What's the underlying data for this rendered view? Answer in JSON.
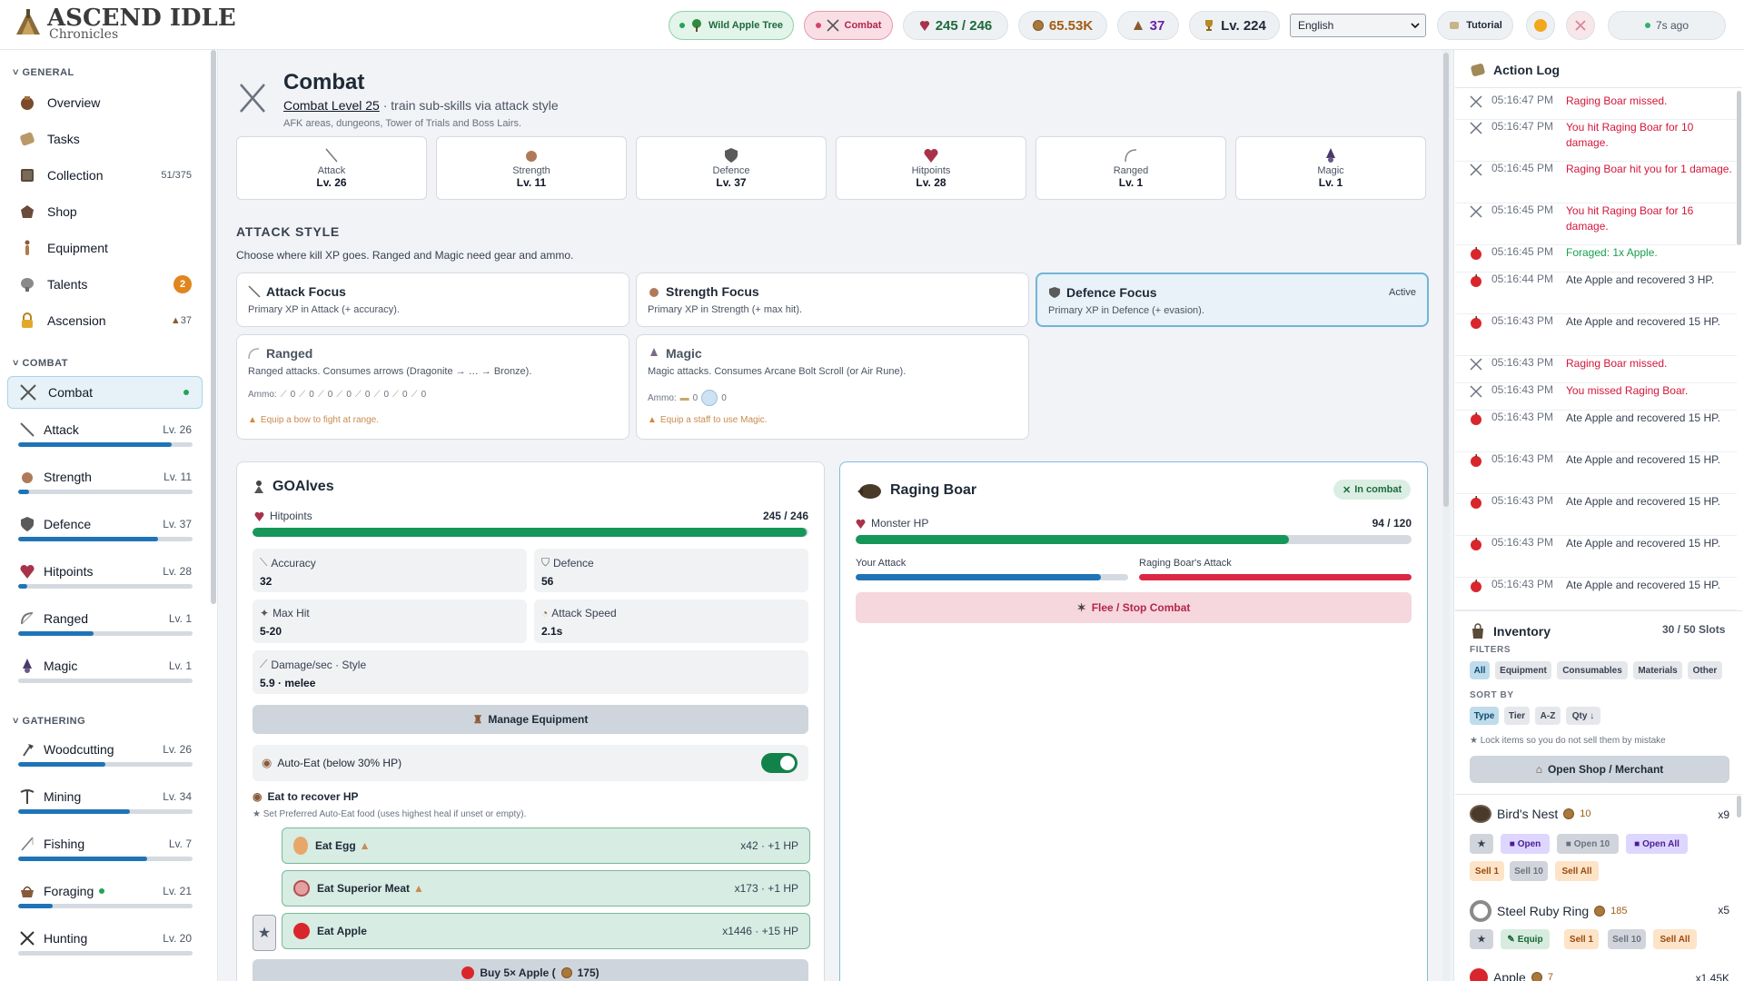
{
  "app": {
    "title": "ASCEND IDLE",
    "subtitle": "Chronicles"
  },
  "topbar": {
    "location": "Wild Apple Tree",
    "activity": "Combat",
    "hp": "245 / 246",
    "gold": "65.53K",
    "ascension": "37",
    "total_level": "Lv. 224",
    "language": "English",
    "tutorial": "Tutorial",
    "last_save": "7s ago"
  },
  "sidebar": {
    "general_label": "GENERAL",
    "general": [
      {
        "label": "Overview",
        "icon": "overview-icon",
        "meta": ""
      },
      {
        "label": "Tasks",
        "icon": "tasks-icon",
        "meta": ""
      },
      {
        "label": "Collection",
        "icon": "collection-icon",
        "meta": "51/375"
      },
      {
        "label": "Shop",
        "icon": "shop-icon",
        "meta": ""
      },
      {
        "label": "Equipment",
        "icon": "equipment-icon",
        "meta": ""
      },
      {
        "label": "Talents",
        "icon": "talents-icon",
        "meta": "2"
      },
      {
        "label": "Ascension",
        "icon": "ascension-icon",
        "meta": "37"
      }
    ],
    "combat_label": "COMBAT",
    "combat_item": "Combat",
    "combat_skills": [
      {
        "label": "Attack",
        "level": "Lv. 26",
        "progress": 0.88
      },
      {
        "label": "Strength",
        "level": "Lv. 11",
        "progress": 0.06
      },
      {
        "label": "Defence",
        "level": "Lv. 37",
        "progress": 0.8
      },
      {
        "label": "Hitpoints",
        "level": "Lv. 28",
        "progress": 0.05
      },
      {
        "label": "Ranged",
        "level": "Lv. 1",
        "progress": 0.43
      },
      {
        "label": "Magic",
        "level": "Lv. 1",
        "progress": 0.0
      }
    ],
    "gathering_label": "GATHERING",
    "gathering_skills": [
      {
        "label": "Woodcutting",
        "level": "Lv. 26",
        "progress": 0.5
      },
      {
        "label": "Mining",
        "level": "Lv. 34",
        "progress": 0.64
      },
      {
        "label": "Fishing",
        "level": "Lv. 7",
        "progress": 0.74
      },
      {
        "label": "Foraging",
        "level": "Lv. 21",
        "progress": 0.2
      },
      {
        "label": "Hunting",
        "level": "Lv. 20",
        "progress": 0.0
      }
    ]
  },
  "combat": {
    "title": "Combat",
    "level_text": "Combat Level 25",
    "tagline": "· train sub-skills via attack style",
    "desc": "AFK areas, dungeons, Tower of Trials and Boss Lairs.",
    "tiles": [
      {
        "name": "Attack",
        "level": "Lv. 26"
      },
      {
        "name": "Strength",
        "level": "Lv. 11"
      },
      {
        "name": "Defence",
        "level": "Lv. 37"
      },
      {
        "name": "Hitpoints",
        "level": "Lv. 28"
      },
      {
        "name": "Ranged",
        "level": "Lv. 1"
      },
      {
        "name": "Magic",
        "level": "Lv. 1"
      }
    ],
    "style_heading": "ATTACK STYLE",
    "style_desc": "Choose where kill XP goes. Ranged and Magic need gear and ammo.",
    "styles": [
      {
        "title": "Attack Focus",
        "desc": "Primary XP in Attack (+ accuracy)."
      },
      {
        "title": "Strength Focus",
        "desc": "Primary XP in Strength (+ max hit)."
      },
      {
        "title": "Defence Focus",
        "desc": "Primary XP in Defence (+ evasion).",
        "tag": "Active"
      }
    ],
    "ranged": {
      "title": "Ranged",
      "desc": "Ranged attacks. Consumes arrows (Dragonite → … → Bronze).",
      "ammo_label": "Ammo:",
      "ammo_counts": [
        "0",
        "0",
        "0",
        "0",
        "0",
        "0",
        "0",
        "0"
      ],
      "warn": "Equip a bow to fight at range."
    },
    "magic": {
      "title": "Magic",
      "desc": "Magic attacks. Consumes Arcane Bolt Scroll (or Air Rune).",
      "ammo_label": "Ammo:",
      "ammo_counts": [
        "0",
        "0"
      ],
      "warn": "Equip a staff to use Magic."
    }
  },
  "player": {
    "name": "GOAlves",
    "hp_label": "Hitpoints",
    "hp_text": "245 / 246",
    "hp_fraction": 0.996,
    "stats": [
      {
        "label": "Accuracy",
        "value": "32"
      },
      {
        "label": "Defence",
        "value": "56"
      },
      {
        "label": "Max Hit",
        "value": "5-20"
      },
      {
        "label": "Attack Speed",
        "value": "2.1s"
      },
      {
        "label": "Damage/sec · Style",
        "value": "5.9 · melee"
      }
    ],
    "manage_equipment": "Manage Equipment",
    "auto_eat": "Auto-Eat (below 30% HP)",
    "eat_heading": "Eat to recover HP",
    "eat_note": "★ Set Preferred Auto-Eat food (uses highest heal if unset or empty).",
    "foods": [
      {
        "label": "Eat Egg",
        "qty": "x42 · +1 HP"
      },
      {
        "label": "Eat Superior Meat",
        "qty": "x173 · +1 HP"
      },
      {
        "label": "Eat Apple",
        "qty": "x1446 · +15 HP"
      }
    ],
    "buy_label": "Buy 5× Apple (",
    "buy_price": "175)"
  },
  "monster": {
    "name": "Raging Boar",
    "status": "In combat",
    "hp_label": "Monster HP",
    "hp_text": "94 / 120",
    "hp_fraction": 0.78,
    "your_attack": "Your Attack",
    "their_attack": "Raging Boar's Attack",
    "your_attack_progress": 0.9,
    "their_attack_progress": 1.0,
    "flee": "Flee / Stop Combat"
  },
  "log": {
    "title": "Action Log",
    "entries": [
      {
        "time": "05:16:47 PM",
        "text": "Raging Boar missed.",
        "color": "red",
        "icon": "swords-icon"
      },
      {
        "time": "05:16:47 PM",
        "text": "You hit Raging Boar for 10 damage.",
        "color": "red",
        "icon": "swords-icon"
      },
      {
        "time": "05:16:45 PM",
        "text": "Raging Boar hit you for 1 damage.",
        "color": "red",
        "icon": "swords-icon"
      },
      {
        "time": "05:16:45 PM",
        "text": "You hit Raging Boar for 16 damage.",
        "color": "red",
        "icon": "swords-icon"
      },
      {
        "time": "05:16:45 PM",
        "text": "Foraged: 1x Apple.",
        "color": "green",
        "icon": "apple-icon"
      },
      {
        "time": "05:16:44 PM",
        "text": "Ate Apple and recovered 3 HP.",
        "color": "gray",
        "icon": "apple-icon"
      },
      {
        "time": "05:16:43 PM",
        "text": "Ate Apple and recovered 15 HP.",
        "color": "gray",
        "icon": "apple-icon"
      },
      {
        "time": "05:16:43 PM",
        "text": "Raging Boar missed.",
        "color": "red",
        "icon": "swords-icon"
      },
      {
        "time": "05:16:43 PM",
        "text": "You missed Raging Boar.",
        "color": "red",
        "icon": "swords-icon"
      },
      {
        "time": "05:16:43 PM",
        "text": "Ate Apple and recovered 15 HP.",
        "color": "gray",
        "icon": "apple-icon"
      },
      {
        "time": "05:16:43 PM",
        "text": "Ate Apple and recovered 15 HP.",
        "color": "gray",
        "icon": "apple-icon"
      },
      {
        "time": "05:16:43 PM",
        "text": "Ate Apple and recovered 15 HP.",
        "color": "gray",
        "icon": "apple-icon"
      },
      {
        "time": "05:16:43 PM",
        "text": "Ate Apple and recovered 15 HP.",
        "color": "gray",
        "icon": "apple-icon"
      },
      {
        "time": "05:16:43 PM",
        "text": "Ate Apple and recovered 15 HP.",
        "color": "gray",
        "icon": "apple-icon"
      }
    ]
  },
  "inventory": {
    "title": "Inventory",
    "slots": "30 / 50 Slots",
    "filters_label": "FILTERS",
    "filters": [
      "All",
      "Equipment",
      "Consumables",
      "Materials",
      "Other"
    ],
    "sort_label": "SORT BY",
    "sorts": [
      "Type",
      "Tier",
      "A-Z",
      "Qty ↓"
    ],
    "lock_note": "★ Lock items so you do not sell them by mistake",
    "open_shop": "Open Shop / Merchant",
    "items": [
      {
        "name": "Bird's Nest",
        "value": "10",
        "qty": "x9",
        "buttons": [
          "Open",
          "Open 10",
          "Open All",
          "Sell 1",
          "Sell 10",
          "Sell All"
        ]
      },
      {
        "name": "Steel Ruby Ring",
        "value": "185",
        "qty": "x5",
        "buttons": [
          "Equip",
          "Sell 1",
          "Sell 10",
          "Sell All"
        ]
      },
      {
        "name": "Apple",
        "value": "7",
        "qty": "x1.45K"
      }
    ]
  }
}
